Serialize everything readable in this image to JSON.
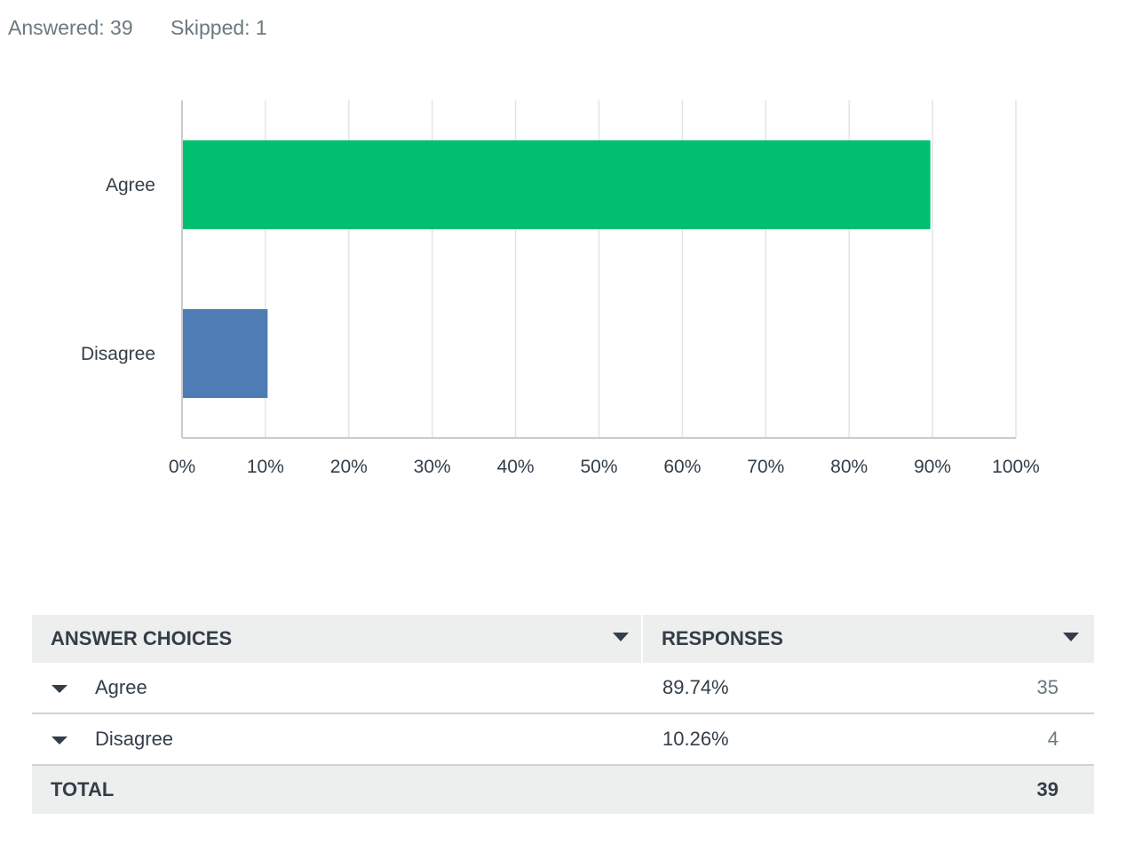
{
  "summary": {
    "answered": "Answered: 39",
    "skipped": "Skipped: 1"
  },
  "chart_data": {
    "type": "bar",
    "orientation": "horizontal",
    "categories": [
      "Agree",
      "Disagree"
    ],
    "values": [
      89.74,
      10.26
    ],
    "colors": [
      "#00bf6f",
      "#507cb6"
    ],
    "xlim": [
      0,
      100
    ],
    "x_ticks": [
      "0%",
      "10%",
      "20%",
      "30%",
      "40%",
      "50%",
      "60%",
      "70%",
      "80%",
      "90%",
      "100%"
    ],
    "grid": true
  },
  "table": {
    "headers": [
      "ANSWER CHOICES",
      "RESPONSES"
    ],
    "rows": [
      {
        "choice": "Agree",
        "percent": "89.74%",
        "count": "35"
      },
      {
        "choice": "Disagree",
        "percent": "10.26%",
        "count": "4"
      }
    ],
    "total_label": "TOTAL",
    "total_value": "39"
  },
  "colors": {
    "header_bg": "#edeeee",
    "text": "#333e48",
    "muted": "#6b787f"
  },
  "icons": [
    "sort-caret-icon",
    "expand-caret-icon"
  ]
}
